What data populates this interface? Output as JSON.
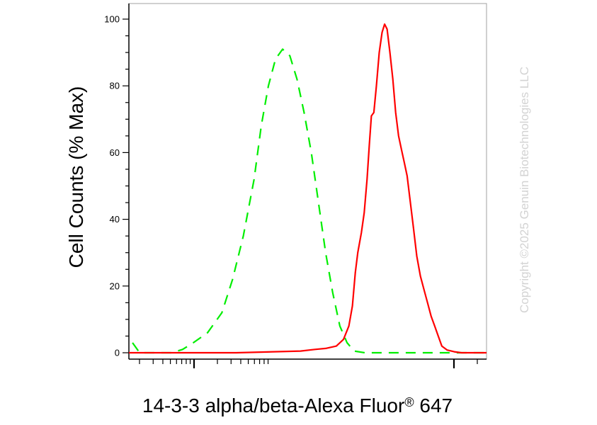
{
  "chart_data": {
    "type": "line",
    "title": "",
    "xlabel": "14-3-3 alpha/beta-Alexa Fluor® 647",
    "ylabel": "Cell Counts (% Max)",
    "ylim": [
      0,
      100
    ],
    "yticks": [
      "0",
      "20",
      "40",
      "60",
      "80",
      "100"
    ],
    "x_scale": "log",
    "series": [
      {
        "style": "dashed",
        "color": "#00ee00",
        "points": [
          [
            1,
            3
          ],
          [
            3,
            0
          ],
          [
            8,
            0
          ],
          [
            12,
            0
          ],
          [
            15,
            1
          ],
          [
            18,
            3
          ],
          [
            22,
            6
          ],
          [
            26,
            12
          ],
          [
            29,
            22
          ],
          [
            32,
            35
          ],
          [
            35,
            52
          ],
          [
            37,
            68
          ],
          [
            39,
            80
          ],
          [
            41,
            88
          ],
          [
            43,
            91
          ],
          [
            45,
            89
          ],
          [
            47,
            82
          ],
          [
            49,
            72
          ],
          [
            51,
            60
          ],
          [
            53,
            45
          ],
          [
            55,
            30
          ],
          [
            57,
            18
          ],
          [
            59,
            8
          ],
          [
            61,
            3
          ],
          [
            63,
            0.5
          ],
          [
            66,
            0
          ],
          [
            100,
            0
          ]
        ]
      },
      {
        "style": "solid",
        "color": "#ff0000",
        "points": [
          [
            0,
            0
          ],
          [
            30,
            0
          ],
          [
            48,
            0.5
          ],
          [
            52,
            1
          ],
          [
            55,
            1.3
          ],
          [
            58,
            2
          ],
          [
            60,
            4
          ],
          [
            61.5,
            8
          ],
          [
            62.5,
            14
          ],
          [
            63.3,
            24
          ],
          [
            64,
            30
          ],
          [
            65,
            36
          ],
          [
            65.8,
            42
          ],
          [
            66.6,
            52
          ],
          [
            67.2,
            62
          ],
          [
            67.8,
            71
          ],
          [
            68.5,
            72
          ],
          [
            69.2,
            80
          ],
          [
            70,
            90
          ],
          [
            70.8,
            96
          ],
          [
            71.5,
            98.5
          ],
          [
            72.2,
            97
          ],
          [
            73,
            90
          ],
          [
            73.8,
            82
          ],
          [
            74.6,
            72
          ],
          [
            75.4,
            65
          ],
          [
            76.2,
            61
          ],
          [
            77,
            57
          ],
          [
            77.8,
            53
          ],
          [
            78.6,
            46
          ],
          [
            79.5,
            38
          ],
          [
            80.5,
            29
          ],
          [
            81.5,
            23
          ],
          [
            82.5,
            19
          ],
          [
            83.5,
            15
          ],
          [
            84.5,
            11
          ],
          [
            85.5,
            8
          ],
          [
            86.5,
            5
          ],
          [
            87.5,
            2
          ],
          [
            89,
            0.8
          ],
          [
            91,
            0.3
          ],
          [
            93,
            0
          ],
          [
            100,
            0
          ]
        ]
      }
    ]
  },
  "watermark": "Copyright ©2025 Genuin Biotechnologies LLC"
}
